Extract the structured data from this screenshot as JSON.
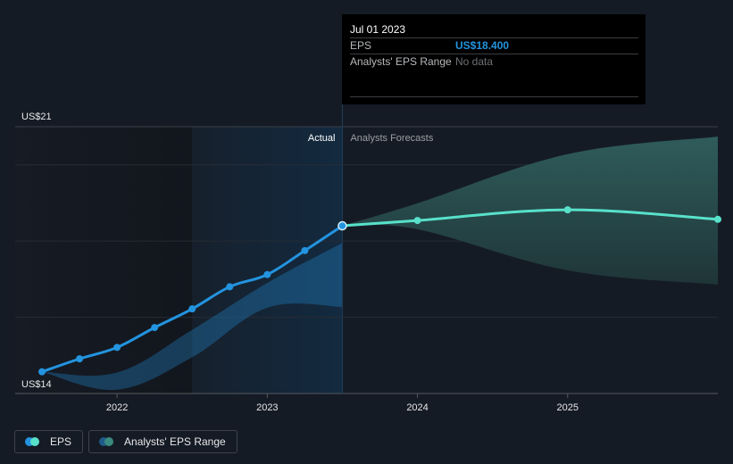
{
  "chart_data": {
    "type": "line",
    "title": "",
    "xlabel": "",
    "ylabel": "",
    "y_unit_prefix": "US$",
    "ylim": [
      14,
      21
    ],
    "y_tick_labels": [
      "US$21",
      "US$14"
    ],
    "gridlines_at": [
      14,
      16,
      18,
      20,
      21
    ],
    "x_ticks": [
      2022,
      2023,
      2024,
      2025
    ],
    "x_tick_labels": [
      "2022",
      "2023",
      "2024",
      "2025"
    ],
    "xlim": [
      2021.5,
      2026.0
    ],
    "region_labels": {
      "actual": "Actual",
      "forecast": "Analysts Forecasts"
    },
    "divider_x": 2023.5,
    "highlight_start_x": 2022.5,
    "series": [
      {
        "name": "EPS",
        "kind": "actual",
        "color": "#2394df",
        "x": [
          2021.5,
          2021.75,
          2022.0,
          2022.25,
          2022.5,
          2022.75,
          2023.0,
          2023.25,
          2023.5
        ],
        "values": [
          14.57,
          14.91,
          15.21,
          15.73,
          16.22,
          16.8,
          17.12,
          17.75,
          18.4
        ]
      },
      {
        "name": "EPS",
        "kind": "forecast",
        "color": "#58e1ca",
        "x": [
          2023.5,
          2024.0,
          2025.0,
          2026.0
        ],
        "values": [
          18.4,
          18.54,
          18.82,
          18.57
        ]
      },
      {
        "name": "Analysts' EPS Range",
        "kind": "historic-range",
        "color": "#2394df",
        "x": [
          2021.5,
          2022.0,
          2022.5,
          2023.0,
          2023.5
        ],
        "high": [
          14.57,
          14.55,
          15.67,
          16.9,
          17.95
        ],
        "low": [
          14.57,
          14.1,
          14.95,
          16.25,
          16.27
        ]
      },
      {
        "name": "Analysts' EPS Range",
        "kind": "forecast-range",
        "color": "#2e5e5c",
        "x": [
          2023.5,
          2024.0,
          2025.0,
          2026.0
        ],
        "high": [
          18.4,
          18.99,
          20.28,
          20.74
        ],
        "low": [
          18.4,
          18.31,
          17.23,
          16.86
        ]
      }
    ]
  },
  "tooltip": {
    "date": "Jul 01 2023",
    "rows": [
      {
        "label": "EPS",
        "value": "US$18.400"
      },
      {
        "label": "Analysts' EPS Range",
        "value": "No data"
      }
    ]
  },
  "legend": {
    "items": [
      {
        "label": "EPS",
        "colors": [
          "#2394df",
          "#58e1ca"
        ]
      },
      {
        "label": "Analysts' EPS Range",
        "colors": [
          "#1f5a8a",
          "#3b8a80"
        ]
      }
    ]
  }
}
